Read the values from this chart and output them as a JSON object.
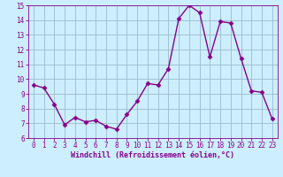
{
  "x": [
    0,
    1,
    2,
    3,
    4,
    5,
    6,
    7,
    8,
    9,
    10,
    11,
    12,
    13,
    14,
    15,
    16,
    17,
    18,
    19,
    20,
    21,
    22,
    23
  ],
  "y": [
    9.6,
    9.4,
    8.3,
    6.9,
    7.4,
    7.1,
    7.2,
    6.8,
    6.6,
    7.6,
    8.5,
    9.7,
    9.6,
    10.7,
    14.1,
    15.0,
    14.5,
    11.5,
    13.9,
    13.8,
    11.4,
    9.2,
    9.1,
    7.3
  ],
  "line_color": "#880088",
  "marker_color": "#880088",
  "bg_color": "#cceeff",
  "grid_color": "#99bbcc",
  "xlabel": "Windchill (Refroidissement éolien,°C)",
  "xlabel_color": "#880088",
  "tick_color": "#880088",
  "spine_color": "#880088",
  "ylim": [
    6,
    15
  ],
  "xlim": [
    -0.5,
    23.5
  ],
  "yticks": [
    6,
    7,
    8,
    9,
    10,
    11,
    12,
    13,
    14,
    15
  ],
  "xticks": [
    0,
    1,
    2,
    3,
    4,
    5,
    6,
    7,
    8,
    9,
    10,
    11,
    12,
    13,
    14,
    15,
    16,
    17,
    18,
    19,
    20,
    21,
    22,
    23
  ],
  "tick_fontsize": 5.5,
  "xlabel_fontsize": 6.0,
  "linewidth": 1.0,
  "markersize": 2.5
}
